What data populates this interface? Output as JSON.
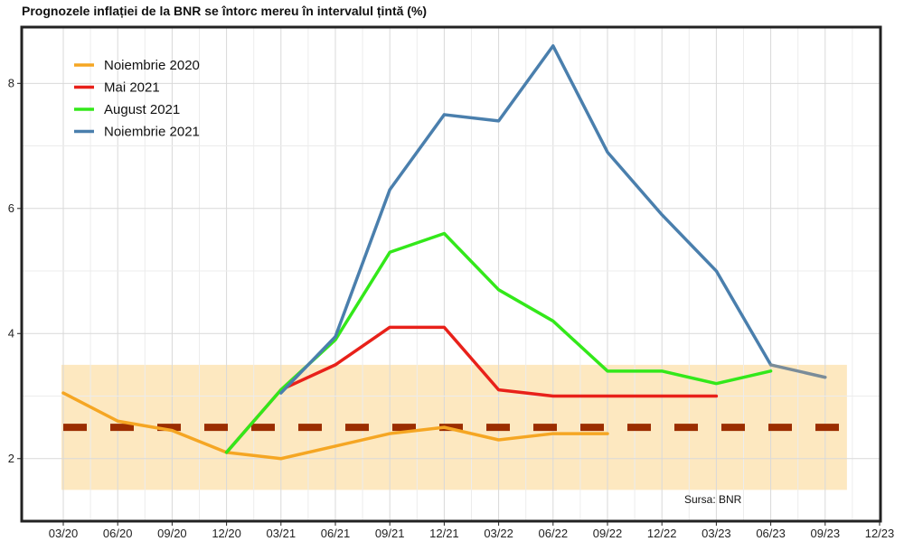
{
  "chart_data": {
    "type": "line",
    "title": "Prognozele inflației de la BNR se întorc mereu în intervalul țintă (%)",
    "xlabel": "",
    "ylabel": "",
    "categories": [
      "03/20",
      "06/20",
      "09/20",
      "12/20",
      "03/21",
      "06/21",
      "09/21",
      "12/21",
      "03/22",
      "06/22",
      "09/22",
      "12/22",
      "03/23",
      "06/23",
      "09/23",
      "12/23"
    ],
    "yticks": [
      2,
      4,
      6,
      8
    ],
    "ylim": [
      1.0,
      8.9
    ],
    "target": {
      "value": 2.5,
      "band": [
        1.5,
        3.5
      ],
      "band_color": "#fde8c0",
      "line_color": "#9b2d00"
    },
    "legend_position": "top-left",
    "grid": true,
    "source": "Sursa: BNR",
    "series": [
      {
        "name": "Noiembrie 2020",
        "color": "#f5a623",
        "values": [
          3.05,
          2.6,
          2.45,
          2.1,
          2.0,
          2.2,
          2.4,
          2.5,
          2.3,
          2.4,
          2.4,
          null,
          null,
          null,
          null,
          null
        ]
      },
      {
        "name": "Mai 2021",
        "color": "#e8211a",
        "values": [
          null,
          null,
          null,
          2.1,
          3.1,
          3.5,
          4.1,
          4.1,
          3.1,
          3.0,
          3.0,
          3.0,
          3.0,
          null,
          null,
          null
        ]
      },
      {
        "name": "August 2021",
        "color": "#33e81a",
        "values": [
          null,
          null,
          null,
          2.1,
          3.1,
          3.9,
          5.3,
          5.6,
          4.7,
          4.2,
          3.4,
          3.4,
          3.2,
          3.4,
          null,
          null
        ]
      },
      {
        "name": "Noiembrie 2021",
        "color": "#4a7fad",
        "values": [
          null,
          null,
          null,
          null,
          3.05,
          3.95,
          6.3,
          7.5,
          7.4,
          8.6,
          6.9,
          5.9,
          5.0,
          3.5,
          3.3,
          null
        ]
      }
    ],
    "series_tail_color": "#7a8c99"
  }
}
